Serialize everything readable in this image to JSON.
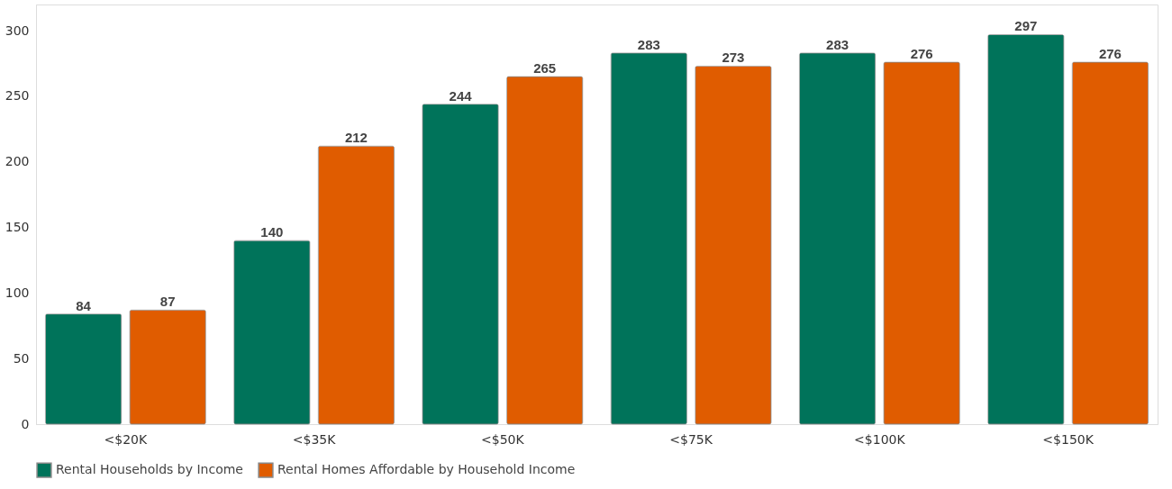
{
  "chart_data": {
    "type": "bar",
    "categories": [
      "<$20K",
      "<$35K",
      "<$50K",
      "<$75K",
      "<$100K",
      "<$150K"
    ],
    "series": [
      {
        "name": "Rental Households by Income",
        "color": "#00735a",
        "values": [
          84,
          140,
          244,
          283,
          283,
          297
        ]
      },
      {
        "name": "Rental Homes Affordable by Household Income",
        "color": "#e05c00",
        "values": [
          87,
          212,
          265,
          273,
          276,
          276
        ]
      }
    ],
    "ylim": [
      0,
      320
    ],
    "yticks": [
      0,
      50,
      100,
      150,
      200,
      250,
      300
    ],
    "data_labels": true,
    "grid": false,
    "legend": "bottom"
  }
}
